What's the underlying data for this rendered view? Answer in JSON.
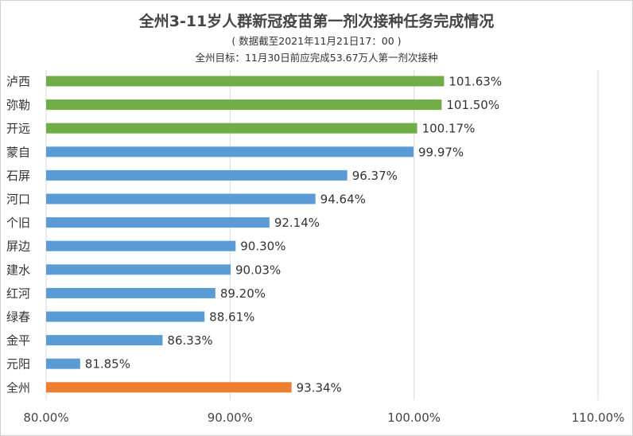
{
  "chart_data": {
    "type": "bar",
    "orientation": "horizontal",
    "title": "全州3-11岁人群新冠疫苗第一剂次接种任务完成情况",
    "subtitle": "( 数据截至2021年11月21日17：00 )",
    "subtitle2": "全州目标：11月30日前应完成53.67万人第一剂次接种",
    "categories": [
      "泸西",
      "弥勒",
      "开远",
      "蒙自",
      "石屏",
      "河口",
      "个旧",
      "屏边",
      "建水",
      "红河",
      "绿春",
      "金平",
      "元阳",
      "全州"
    ],
    "values": [
      101.63,
      101.5,
      100.17,
      99.97,
      96.37,
      94.64,
      92.14,
      90.3,
      90.03,
      89.2,
      88.61,
      86.33,
      81.85,
      93.34
    ],
    "value_labels": [
      "101.63%",
      "101.50%",
      "100.17%",
      "99.97%",
      "96.37%",
      "94.64%",
      "92.14%",
      "90.30%",
      "90.03%",
      "89.20%",
      "88.61%",
      "86.33%",
      "81.85%",
      "93.34%"
    ],
    "colors": [
      "#70ad47",
      "#70ad47",
      "#70ad47",
      "#5b9bd5",
      "#5b9bd5",
      "#5b9bd5",
      "#5b9bd5",
      "#5b9bd5",
      "#5b9bd5",
      "#5b9bd5",
      "#5b9bd5",
      "#5b9bd5",
      "#5b9bd5",
      "#ed7d31"
    ],
    "xlim": [
      80,
      110
    ],
    "x_ticks": [
      80,
      90,
      100,
      110
    ],
    "x_tick_labels": [
      "80.00%",
      "90.00%",
      "100.00%",
      "110.00%"
    ],
    "grid": "vertical",
    "legend": "none"
  }
}
